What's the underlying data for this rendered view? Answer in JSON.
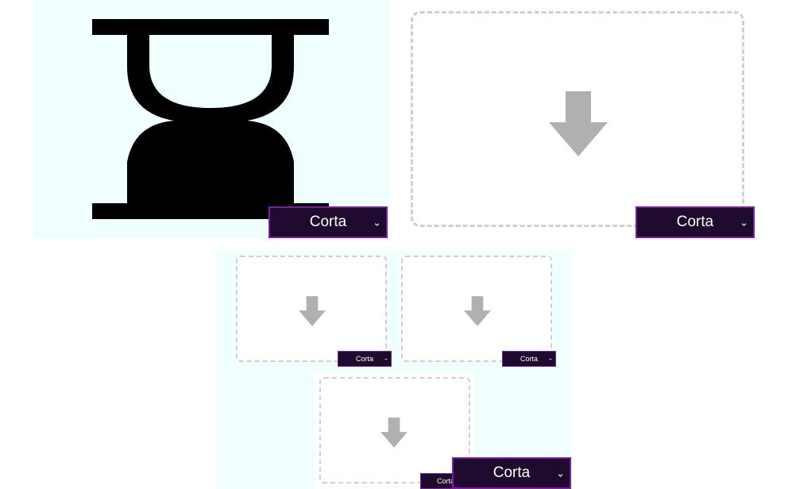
{
  "selects": {
    "hourglass": "Corta",
    "upload_large": "Corta",
    "nested_left": "Corta",
    "nested_right": "Corta",
    "nested_bottom": "Corta",
    "bottom_overlay": "Corta"
  },
  "icons": {
    "hourglass": "hourglass-icon",
    "arrow": "arrow-down-icon",
    "chevron": "chevron-down-icon"
  },
  "colors": {
    "panel_bg": "#effffe",
    "select_bg": "#1d0a2c",
    "select_border": "#7a1fa3",
    "dashed_border": "#cfcfcf",
    "arrow": "#b0b0b0"
  }
}
